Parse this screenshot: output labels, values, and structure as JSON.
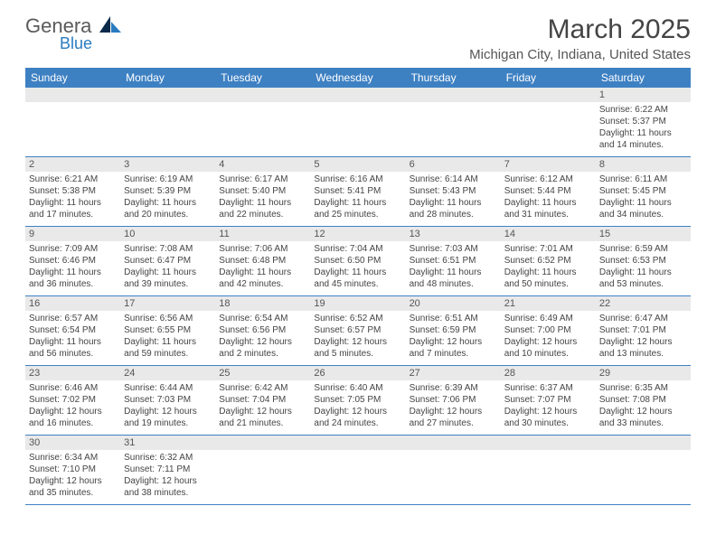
{
  "logo": {
    "general": "Genera",
    "blue": "Blue"
  },
  "title": "March 2025",
  "location": "Michigan City, Indiana, United States",
  "colors": {
    "header_bg": "#3e81c3",
    "row_border": "#3e81c3",
    "daynum_bg": "#e9e9e9",
    "text": "#444444",
    "logo_gray": "#5a5a5a",
    "logo_blue": "#2b7bbf"
  },
  "dow": [
    "Sunday",
    "Monday",
    "Tuesday",
    "Wednesday",
    "Thursday",
    "Friday",
    "Saturday"
  ],
  "weeks": [
    [
      null,
      null,
      null,
      null,
      null,
      null,
      {
        "n": "1",
        "sr": "6:22 AM",
        "ss": "5:37 PM",
        "dh": "11",
        "dm": "14"
      }
    ],
    [
      {
        "n": "2",
        "sr": "6:21 AM",
        "ss": "5:38 PM",
        "dh": "11",
        "dm": "17"
      },
      {
        "n": "3",
        "sr": "6:19 AM",
        "ss": "5:39 PM",
        "dh": "11",
        "dm": "20"
      },
      {
        "n": "4",
        "sr": "6:17 AM",
        "ss": "5:40 PM",
        "dh": "11",
        "dm": "22"
      },
      {
        "n": "5",
        "sr": "6:16 AM",
        "ss": "5:41 PM",
        "dh": "11",
        "dm": "25"
      },
      {
        "n": "6",
        "sr": "6:14 AM",
        "ss": "5:43 PM",
        "dh": "11",
        "dm": "28"
      },
      {
        "n": "7",
        "sr": "6:12 AM",
        "ss": "5:44 PM",
        "dh": "11",
        "dm": "31"
      },
      {
        "n": "8",
        "sr": "6:11 AM",
        "ss": "5:45 PM",
        "dh": "11",
        "dm": "34"
      }
    ],
    [
      {
        "n": "9",
        "sr": "7:09 AM",
        "ss": "6:46 PM",
        "dh": "11",
        "dm": "36"
      },
      {
        "n": "10",
        "sr": "7:08 AM",
        "ss": "6:47 PM",
        "dh": "11",
        "dm": "39"
      },
      {
        "n": "11",
        "sr": "7:06 AM",
        "ss": "6:48 PM",
        "dh": "11",
        "dm": "42"
      },
      {
        "n": "12",
        "sr": "7:04 AM",
        "ss": "6:50 PM",
        "dh": "11",
        "dm": "45"
      },
      {
        "n": "13",
        "sr": "7:03 AM",
        "ss": "6:51 PM",
        "dh": "11",
        "dm": "48"
      },
      {
        "n": "14",
        "sr": "7:01 AM",
        "ss": "6:52 PM",
        "dh": "11",
        "dm": "50"
      },
      {
        "n": "15",
        "sr": "6:59 AM",
        "ss": "6:53 PM",
        "dh": "11",
        "dm": "53"
      }
    ],
    [
      {
        "n": "16",
        "sr": "6:57 AM",
        "ss": "6:54 PM",
        "dh": "11",
        "dm": "56"
      },
      {
        "n": "17",
        "sr": "6:56 AM",
        "ss": "6:55 PM",
        "dh": "11",
        "dm": "59"
      },
      {
        "n": "18",
        "sr": "6:54 AM",
        "ss": "6:56 PM",
        "dh": "12",
        "dm": "2"
      },
      {
        "n": "19",
        "sr": "6:52 AM",
        "ss": "6:57 PM",
        "dh": "12",
        "dm": "5"
      },
      {
        "n": "20",
        "sr": "6:51 AM",
        "ss": "6:59 PM",
        "dh": "12",
        "dm": "7"
      },
      {
        "n": "21",
        "sr": "6:49 AM",
        "ss": "7:00 PM",
        "dh": "12",
        "dm": "10"
      },
      {
        "n": "22",
        "sr": "6:47 AM",
        "ss": "7:01 PM",
        "dh": "12",
        "dm": "13"
      }
    ],
    [
      {
        "n": "23",
        "sr": "6:46 AM",
        "ss": "7:02 PM",
        "dh": "12",
        "dm": "16"
      },
      {
        "n": "24",
        "sr": "6:44 AM",
        "ss": "7:03 PM",
        "dh": "12",
        "dm": "19"
      },
      {
        "n": "25",
        "sr": "6:42 AM",
        "ss": "7:04 PM",
        "dh": "12",
        "dm": "21"
      },
      {
        "n": "26",
        "sr": "6:40 AM",
        "ss": "7:05 PM",
        "dh": "12",
        "dm": "24"
      },
      {
        "n": "27",
        "sr": "6:39 AM",
        "ss": "7:06 PM",
        "dh": "12",
        "dm": "27"
      },
      {
        "n": "28",
        "sr": "6:37 AM",
        "ss": "7:07 PM",
        "dh": "12",
        "dm": "30"
      },
      {
        "n": "29",
        "sr": "6:35 AM",
        "ss": "7:08 PM",
        "dh": "12",
        "dm": "33"
      }
    ],
    [
      {
        "n": "30",
        "sr": "6:34 AM",
        "ss": "7:10 PM",
        "dh": "12",
        "dm": "35"
      },
      {
        "n": "31",
        "sr": "6:32 AM",
        "ss": "7:11 PM",
        "dh": "12",
        "dm": "38"
      },
      null,
      null,
      null,
      null,
      null
    ]
  ],
  "labels": {
    "sunrise": "Sunrise:",
    "sunset": "Sunset:",
    "daylight_pre": "Daylight:",
    "hours_word": "hours",
    "and_word": "and",
    "minutes_word": "minutes."
  }
}
